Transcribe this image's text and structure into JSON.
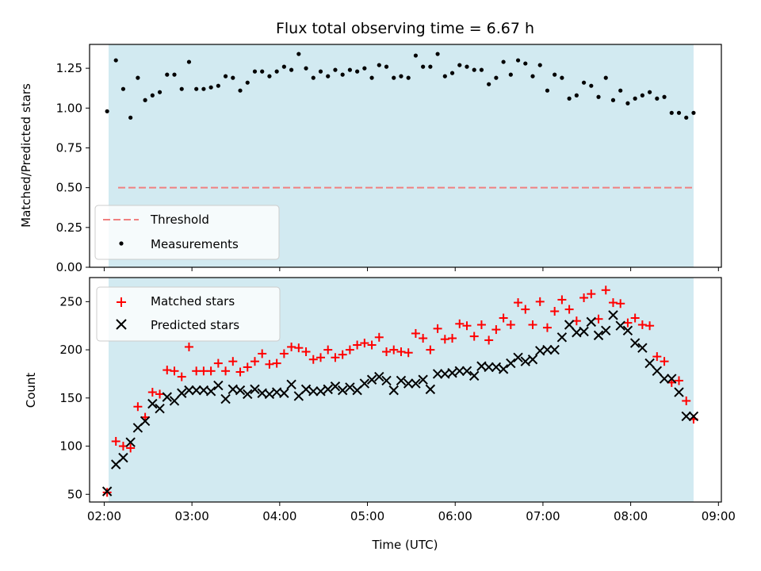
{
  "chart_data": [
    {
      "type": "scatter",
      "title": "Flux total observing time = 6.67 h",
      "xlabel": "",
      "ylabel": "Matched/Predicted stars",
      "xlim": [
        "01:50",
        "09:02"
      ],
      "ylim": [
        0,
        1.4
      ],
      "yticks": [
        "0.00",
        "0.25",
        "0.50",
        "0.75",
        "1.00",
        "1.25"
      ],
      "shaded_interval": [
        "02:03",
        "08:43"
      ],
      "shade_color": "#add8e6",
      "threshold": {
        "name": "Threshold",
        "value": 0.5,
        "color": "#f08080"
      },
      "legend_loc": "lower-left",
      "series": [
        {
          "name": "Measurements",
          "marker": "dot",
          "color": "#000000",
          "x": [
            "02:02",
            "02:08",
            "02:13",
            "02:18",
            "02:23",
            "02:28",
            "02:33",
            "02:38",
            "02:43",
            "02:48",
            "02:53",
            "02:58",
            "03:03",
            "03:08",
            "03:13",
            "03:18",
            "03:23",
            "03:28",
            "03:33",
            "03:38",
            "03:43",
            "03:48",
            "03:53",
            "03:58",
            "04:03",
            "04:08",
            "04:13",
            "04:18",
            "04:23",
            "04:28",
            "04:33",
            "04:38",
            "04:43",
            "04:48",
            "04:53",
            "04:58",
            "05:03",
            "05:08",
            "05:13",
            "05:18",
            "05:23",
            "05:28",
            "05:33",
            "05:38",
            "05:43",
            "05:48",
            "05:53",
            "05:58",
            "06:03",
            "06:08",
            "06:13",
            "06:18",
            "06:23",
            "06:28",
            "06:33",
            "06:38",
            "06:43",
            "06:48",
            "06:53",
            "06:58",
            "07:03",
            "07:08",
            "07:13",
            "07:18",
            "07:23",
            "07:28",
            "07:33",
            "07:38",
            "07:43",
            "07:48",
            "07:53",
            "07:58",
            "08:03",
            "08:08",
            "08:13",
            "08:18",
            "08:23",
            "08:28",
            "08:33",
            "08:38",
            "08:43"
          ],
          "y": [
            0.98,
            1.3,
            1.12,
            0.94,
            1.19,
            1.05,
            1.08,
            1.1,
            1.21,
            1.21,
            1.12,
            1.29,
            1.12,
            1.12,
            1.13,
            1.14,
            1.2,
            1.19,
            1.11,
            1.16,
            1.23,
            1.23,
            1.2,
            1.23,
            1.26,
            1.24,
            1.34,
            1.25,
            1.19,
            1.23,
            1.2,
            1.24,
            1.21,
            1.24,
            1.23,
            1.25,
            1.19,
            1.27,
            1.26,
            1.19,
            1.2,
            1.19,
            1.33,
            1.26,
            1.26,
            1.34,
            1.2,
            1.22,
            1.27,
            1.26,
            1.24,
            1.24,
            1.15,
            1.19,
            1.29,
            1.21,
            1.3,
            1.28,
            1.2,
            1.27,
            1.11,
            1.21,
            1.19,
            1.06,
            1.08,
            1.16,
            1.14,
            1.07,
            1.19,
            1.05,
            1.11,
            1.03,
            1.06,
            1.08,
            1.1,
            1.06,
            1.07,
            0.97,
            0.97,
            0.94,
            0.97
          ]
        }
      ]
    },
    {
      "type": "scatter",
      "title": "",
      "xlabel": "Time (UTC)",
      "ylabel": "Count",
      "xlim": [
        "01:50",
        "09:02"
      ],
      "ylim": [
        42,
        275
      ],
      "yticks": [
        "50",
        "100",
        "150",
        "200",
        "250"
      ],
      "xticks": [
        "02:00",
        "03:00",
        "04:00",
        "05:00",
        "06:00",
        "07:00",
        "08:00",
        "09:00"
      ],
      "shaded_interval": [
        "02:03",
        "08:43"
      ],
      "shade_color": "#add8e6",
      "legend_loc": "upper-left",
      "series": [
        {
          "name": "Matched stars",
          "marker": "plus",
          "color": "#ff0000",
          "x": [
            "02:02",
            "02:08",
            "02:13",
            "02:18",
            "02:23",
            "02:28",
            "02:33",
            "02:38",
            "02:43",
            "02:48",
            "02:53",
            "02:58",
            "03:03",
            "03:08",
            "03:13",
            "03:18",
            "03:23",
            "03:28",
            "03:33",
            "03:38",
            "03:43",
            "03:48",
            "03:53",
            "03:58",
            "04:03",
            "04:08",
            "04:13",
            "04:18",
            "04:23",
            "04:28",
            "04:33",
            "04:38",
            "04:43",
            "04:48",
            "04:53",
            "04:58",
            "05:03",
            "05:08",
            "05:13",
            "05:18",
            "05:23",
            "05:28",
            "05:33",
            "05:38",
            "05:43",
            "05:48",
            "05:53",
            "05:58",
            "06:03",
            "06:08",
            "06:13",
            "06:18",
            "06:23",
            "06:28",
            "06:33",
            "06:38",
            "06:43",
            "06:48",
            "06:53",
            "06:58",
            "07:03",
            "07:08",
            "07:13",
            "07:18",
            "07:23",
            "07:28",
            "07:33",
            "07:38",
            "07:43",
            "07:48",
            "07:53",
            "07:58",
            "08:03",
            "08:08",
            "08:13",
            "08:18",
            "08:23",
            "08:28",
            "08:33",
            "08:38",
            "08:43"
          ],
          "y": [
            52,
            105,
            100,
            98,
            141,
            130,
            156,
            154,
            179,
            178,
            172,
            203,
            178,
            178,
            178,
            186,
            178,
            188,
            177,
            182,
            188,
            196,
            185,
            186,
            196,
            203,
            202,
            198,
            190,
            192,
            200,
            192,
            195,
            200,
            205,
            207,
            205,
            213,
            198,
            200,
            198,
            197,
            217,
            212,
            200,
            222,
            211,
            212,
            227,
            225,
            214,
            226,
            210,
            221,
            233,
            226,
            249,
            242,
            226,
            250,
            223,
            240,
            252,
            242,
            230,
            254,
            258,
            232,
            262,
            249,
            248,
            228,
            233,
            226,
            225,
            193,
            188,
            166,
            168,
            147,
            128
          ]
        },
        {
          "name": "Predicted stars",
          "marker": "x",
          "color": "#000000",
          "x": [
            "02:02",
            "02:08",
            "02:13",
            "02:18",
            "02:23",
            "02:28",
            "02:33",
            "02:38",
            "02:43",
            "02:48",
            "02:53",
            "02:58",
            "03:03",
            "03:08",
            "03:13",
            "03:18",
            "03:23",
            "03:28",
            "03:33",
            "03:38",
            "03:43",
            "03:48",
            "03:53",
            "03:58",
            "04:03",
            "04:08",
            "04:13",
            "04:18",
            "04:23",
            "04:28",
            "04:33",
            "04:38",
            "04:43",
            "04:48",
            "04:53",
            "04:58",
            "05:03",
            "05:08",
            "05:13",
            "05:18",
            "05:23",
            "05:28",
            "05:33",
            "05:38",
            "05:43",
            "05:48",
            "05:53",
            "05:58",
            "06:03",
            "06:08",
            "06:13",
            "06:18",
            "06:23",
            "06:28",
            "06:33",
            "06:38",
            "06:43",
            "06:48",
            "06:53",
            "06:58",
            "07:03",
            "07:08",
            "07:13",
            "07:18",
            "07:23",
            "07:28",
            "07:33",
            "07:38",
            "07:43",
            "07:48",
            "07:53",
            "07:58",
            "08:03",
            "08:08",
            "08:13",
            "08:18",
            "08:23",
            "08:28",
            "08:33",
            "08:38",
            "08:43"
          ],
          "y": [
            53,
            81,
            88,
            104,
            119,
            126,
            144,
            139,
            151,
            147,
            155,
            158,
            158,
            158,
            157,
            163,
            149,
            159,
            158,
            154,
            159,
            155,
            154,
            156,
            155,
            164,
            152,
            159,
            157,
            157,
            159,
            162,
            158,
            161,
            158,
            165,
            169,
            172,
            168,
            158,
            168,
            165,
            165,
            169,
            159,
            175,
            175,
            176,
            178,
            178,
            173,
            183,
            182,
            182,
            180,
            186,
            192,
            188,
            190,
            199,
            200,
            200,
            213,
            226,
            218,
            219,
            229,
            215,
            220,
            236,
            225,
            220,
            207,
            202,
            186,
            178,
            170,
            170,
            156,
            131,
            131
          ]
        }
      ]
    }
  ]
}
